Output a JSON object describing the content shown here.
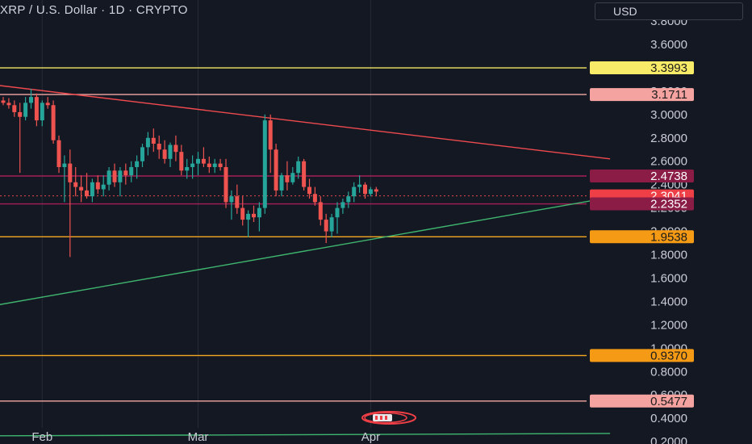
{
  "header": {
    "title": "XRP / U.S. Dollar · 1D · CRYPTO",
    "currency": "USD"
  },
  "chart_data": {
    "type": "candlestick",
    "y_axis": {
      "range": [
        0.18,
        3.98
      ],
      "ticks": [
        "3.8000",
        "3.6000",
        "3.4000",
        "3.2000",
        "3.0000",
        "2.8000",
        "2.6000",
        "2.4000",
        "2.2000",
        "2.0000",
        "1.8000",
        "1.6000",
        "1.4000",
        "1.2000",
        "1.0000",
        "0.8000",
        "0.6000",
        "0.4000",
        "0.2000"
      ]
    },
    "x_axis": {
      "labels": [
        {
          "text": "Feb",
          "index": 7
        },
        {
          "text": "Mar",
          "index": 35
        },
        {
          "text": "Apr",
          "index": 66
        }
      ]
    },
    "candles": [
      [
        3.12,
        3.15,
        3.08,
        3.1
      ],
      [
        3.1,
        3.14,
        3.05,
        3.08
      ],
      [
        3.08,
        3.12,
        2.98,
        3.02
      ],
      [
        3.02,
        3.1,
        2.5,
        2.98
      ],
      [
        2.98,
        3.15,
        2.95,
        3.1
      ],
      [
        3.1,
        3.22,
        3.05,
        3.15
      ],
      [
        3.15,
        3.18,
        2.9,
        2.95
      ],
      [
        2.95,
        3.12,
        2.9,
        3.1
      ],
      [
        3.1,
        3.15,
        3.05,
        3.08
      ],
      [
        3.08,
        3.12,
        2.75,
        2.78
      ],
      [
        2.78,
        2.82,
        2.5,
        2.55
      ],
      [
        2.55,
        2.65,
        2.25,
        2.58
      ],
      [
        2.58,
        2.7,
        1.78,
        2.42
      ],
      [
        2.42,
        2.55,
        2.3,
        2.38
      ],
      [
        2.38,
        2.48,
        2.25,
        2.35
      ],
      [
        2.35,
        2.5,
        2.28,
        2.3
      ],
      [
        2.3,
        2.45,
        2.25,
        2.42
      ],
      [
        2.42,
        2.48,
        2.32,
        2.36
      ],
      [
        2.36,
        2.48,
        2.3,
        2.4
      ],
      [
        2.4,
        2.55,
        2.35,
        2.52
      ],
      [
        2.52,
        2.58,
        2.38,
        2.42
      ],
      [
        2.42,
        2.55,
        2.3,
        2.52
      ],
      [
        2.52,
        2.58,
        2.4,
        2.48
      ],
      [
        2.48,
        2.6,
        2.42,
        2.55
      ],
      [
        2.55,
        2.65,
        2.45,
        2.6
      ],
      [
        2.6,
        2.75,
        2.55,
        2.72
      ],
      [
        2.72,
        2.85,
        2.65,
        2.8
      ],
      [
        2.8,
        2.88,
        2.68,
        2.75
      ],
      [
        2.75,
        2.82,
        2.62,
        2.7
      ],
      [
        2.7,
        2.78,
        2.58,
        2.62
      ],
      [
        2.62,
        2.76,
        2.55,
        2.74
      ],
      [
        2.74,
        2.82,
        2.6,
        2.68
      ],
      [
        2.68,
        2.74,
        2.48,
        2.52
      ],
      [
        2.52,
        2.62,
        2.45,
        2.55
      ],
      [
        2.55,
        2.65,
        2.45,
        2.58
      ],
      [
        2.58,
        2.68,
        2.48,
        2.62
      ],
      [
        2.62,
        2.72,
        2.55,
        2.58
      ],
      [
        2.58,
        2.64,
        2.5,
        2.55
      ],
      [
        2.55,
        2.62,
        2.5,
        2.58
      ],
      [
        2.58,
        2.62,
        2.52,
        2.55
      ],
      [
        2.55,
        2.62,
        2.2,
        2.25
      ],
      [
        2.25,
        2.35,
        2.1,
        2.3
      ],
      [
        2.3,
        2.4,
        2.15,
        2.2
      ],
      [
        2.2,
        2.3,
        2.05,
        2.1
      ],
      [
        2.1,
        2.18,
        1.95,
        2.15
      ],
      [
        2.15,
        2.22,
        2.08,
        2.12
      ],
      [
        2.12,
        2.25,
        2.0,
        2.2
      ],
      [
        2.2,
        3.0,
        2.15,
        2.95
      ],
      [
        2.95,
        3.0,
        2.5,
        2.7
      ],
      [
        2.7,
        2.75,
        2.3,
        2.35
      ],
      [
        2.35,
        2.5,
        2.3,
        2.48
      ],
      [
        2.48,
        2.6,
        2.35,
        2.42
      ],
      [
        2.42,
        2.55,
        2.4,
        2.5
      ],
      [
        2.5,
        2.64,
        2.45,
        2.6
      ],
      [
        2.6,
        2.62,
        2.35,
        2.38
      ],
      [
        2.38,
        2.45,
        2.28,
        2.32
      ],
      [
        2.32,
        2.38,
        2.22,
        2.25
      ],
      [
        2.25,
        2.3,
        2.05,
        2.1
      ],
      [
        2.1,
        2.15,
        1.9,
        2.0
      ],
      [
        2.0,
        2.15,
        1.95,
        2.12
      ],
      [
        2.12,
        2.25,
        1.98,
        2.2
      ],
      [
        2.2,
        2.28,
        2.15,
        2.25
      ],
      [
        2.25,
        2.34,
        2.2,
        2.3
      ],
      [
        2.3,
        2.42,
        2.25,
        2.38
      ],
      [
        2.38,
        2.48,
        2.33,
        2.4
      ],
      [
        2.4,
        2.42,
        2.28,
        2.32
      ],
      [
        2.32,
        2.38,
        2.3,
        2.36
      ],
      [
        2.36,
        2.38,
        2.3,
        2.34
      ]
    ],
    "horizontal_levels": [
      {
        "value": 3.3993,
        "label": "3.3993",
        "line": "#f5e663",
        "tag_bg": "#f7eb67",
        "tag_fg": "#1b1b1b"
      },
      {
        "value": 3.1711,
        "label": "3.1711",
        "line": "#f4a7a3",
        "tag_bg": "#f4a3a0",
        "tag_fg": "#1b1b1b"
      },
      {
        "value": 2.4738,
        "label": "2.4738",
        "line": "#a31f55",
        "tag_bg": "#8a1c46",
        "tag_fg": "#ffffff"
      },
      {
        "value": 2.3041,
        "label": "2.3041",
        "line": "#e5464b",
        "tag_bg": "#ef3f46",
        "tag_fg": "#ffffff",
        "dashed": true
      },
      {
        "value": 2.2352,
        "label": "2.2352",
        "line": "#a31f55",
        "tag_bg": "#8a1c46",
        "tag_fg": "#ffffff"
      },
      {
        "value": 1.9538,
        "label": "1.9538",
        "line": "#f5a623",
        "tag_bg": "#f59a14",
        "tag_fg": "#1b1b1b"
      },
      {
        "value": 0.937,
        "label": "0.9370",
        "line": "#f5a623",
        "tag_bg": "#f59a14",
        "tag_fg": "#1b1b1b"
      },
      {
        "value": 0.5477,
        "label": "0.5477",
        "line": "#f4a7a3",
        "tag_bg": "#f4a3a0",
        "tag_fg": "#1b1b1b"
      }
    ],
    "trendlines": [
      {
        "name": "",
        "color": "#ef4a4f",
        "from": [
          -1,
          3.25
        ],
        "to": [
          109,
          2.62
        ]
      },
      {
        "name": "",
        "color": "#3fb66f",
        "from": [
          -1,
          1.37
        ],
        "to": [
          109,
          2.29
        ]
      },
      {
        "name": "",
        "color": "#3fb66f",
        "from": [
          -1,
          0.25
        ],
        "to": [
          109,
          0.27
        ]
      }
    ],
    "colors": {
      "background": "#141823",
      "up": "#26a69a",
      "down": "#ef5350",
      "grid": "#262a35",
      "axis_text": "#c9ccd4"
    }
  }
}
